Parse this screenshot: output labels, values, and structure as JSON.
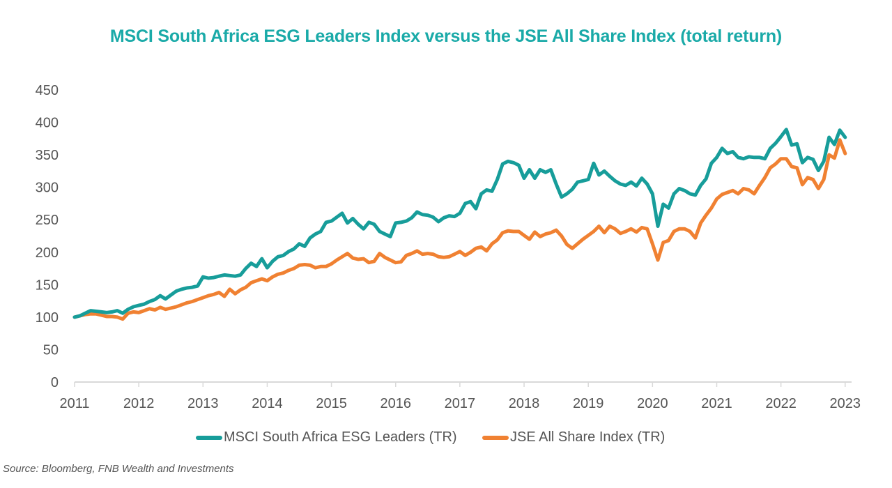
{
  "chart_data": {
    "type": "line",
    "title": "MSCI South Africa ESG Leaders Index versus the JSE All Share Index (total return)",
    "xlabel": "",
    "ylabel": "",
    "ylim": [
      0,
      450
    ],
    "yticks": [
      "0",
      "50",
      "100",
      "150",
      "200",
      "250",
      "300",
      "350",
      "400",
      "450"
    ],
    "xlim": [
      2011.0,
      2023.1
    ],
    "xticks": [
      "2011",
      "2012",
      "2013",
      "2014",
      "2015",
      "2016",
      "2017",
      "2018",
      "2019",
      "2020",
      "2021",
      "2022",
      "2023"
    ],
    "grid": false,
    "legend_position": "bottom",
    "x_frequency": "monthly, starting Jan 2011",
    "series": [
      {
        "name": "MSCI South Africa ESG Leaders (TR)",
        "color": "#179d9a",
        "values": [
          100,
          102,
          106,
          110,
          109,
          108,
          107,
          108,
          110,
          106,
          112,
          116,
          118,
          120,
          124,
          127,
          133,
          128,
          134,
          140,
          143,
          145,
          146,
          148,
          162,
          160,
          161,
          163,
          165,
          164,
          163,
          165,
          175,
          183,
          178,
          190,
          176,
          186,
          193,
          195,
          201,
          205,
          213,
          209,
          222,
          228,
          232,
          246,
          248,
          254,
          260,
          245,
          252,
          243,
          236,
          246,
          243,
          232,
          228,
          224,
          245,
          246,
          248,
          253,
          262,
          258,
          257,
          254,
          247,
          253,
          256,
          255,
          260,
          275,
          278,
          267,
          290,
          296,
          294,
          312,
          336,
          340,
          338,
          334,
          314,
          327,
          314,
          327,
          323,
          327,
          305,
          285,
          290,
          297,
          308,
          310,
          312,
          337,
          319,
          325,
          317,
          310,
          305,
          303,
          308,
          302,
          314,
          305,
          290,
          240,
          274,
          268,
          290,
          298,
          295,
          290,
          288,
          303,
          313,
          337,
          346,
          360,
          352,
          355,
          346,
          344,
          347,
          346,
          346,
          344,
          360,
          368,
          378,
          389,
          365,
          367,
          338,
          346,
          343,
          326,
          340,
          377,
          366,
          388,
          377
        ]
      },
      {
        "name": "JSE All Share Index (TR)",
        "color": "#f08132",
        "values": [
          100,
          102,
          104,
          105,
          105,
          103,
          101,
          101,
          100,
          97,
          106,
          108,
          107,
          110,
          113,
          111,
          115,
          112,
          114,
          116,
          119,
          122,
          124,
          127,
          130,
          133,
          135,
          138,
          132,
          143,
          136,
          142,
          146,
          153,
          156,
          159,
          156,
          162,
          166,
          168,
          172,
          175,
          180,
          181,
          180,
          176,
          178,
          178,
          182,
          188,
          193,
          198,
          191,
          189,
          190,
          184,
          186,
          198,
          192,
          188,
          184,
          185,
          195,
          198,
          202,
          197,
          198,
          197,
          193,
          192,
          193,
          197,
          201,
          195,
          200,
          206,
          208,
          202,
          213,
          219,
          230,
          233,
          232,
          232,
          226,
          220,
          231,
          224,
          228,
          230,
          234,
          225,
          212,
          206,
          213,
          220,
          226,
          232,
          240,
          230,
          240,
          236,
          229,
          232,
          236,
          231,
          238,
          236,
          213,
          188,
          215,
          218,
          232,
          236,
          236,
          232,
          222,
          245,
          257,
          268,
          282,
          289,
          292,
          295,
          290,
          298,
          296,
          290,
          303,
          315,
          330,
          336,
          344,
          344,
          332,
          330,
          304,
          315,
          312,
          298,
          312,
          350,
          345,
          373,
          352
        ]
      }
    ]
  },
  "source": "Source: Bloomberg, FNB Wealth and Investments"
}
